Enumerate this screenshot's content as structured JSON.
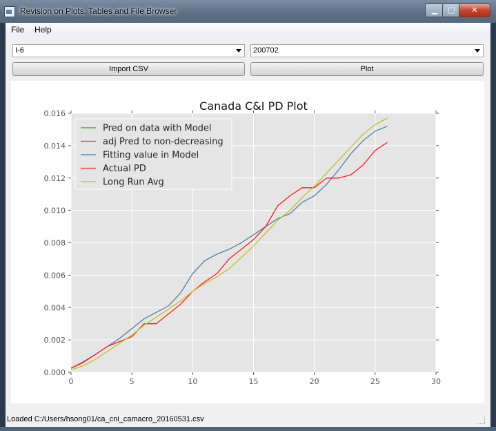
{
  "window": {
    "title": "Revision on Plots, Tables and File Browser",
    "min_glyph": "▁",
    "max_glyph": "□",
    "close_glyph": "✕"
  },
  "menu": [
    "File",
    "Help"
  ],
  "controls": {
    "combo_left": "I-6",
    "combo_right": "200702",
    "import_label": "Import CSV",
    "plot_label": "Plot"
  },
  "status": "Loaded C:/Users/hsong01/ca_cni_camacro_20160531.csv",
  "chart_data": {
    "type": "line",
    "title": "Canada C&I PD Plot",
    "xlim": [
      0,
      30
    ],
    "ylim": [
      0,
      0.016
    ],
    "x_ticks": [
      "0",
      "5",
      "10",
      "15",
      "20",
      "25",
      "30"
    ],
    "y_ticks": [
      "0.000",
      "0.002",
      "0.004",
      "0.006",
      "0.008",
      "0.010",
      "0.012",
      "0.014",
      "0.016"
    ],
    "x_tick_values": [
      0,
      5,
      10,
      15,
      20,
      25,
      30
    ],
    "y_tick_values": [
      0,
      0.002,
      0.004,
      0.006,
      0.008,
      0.01,
      0.012,
      0.014,
      0.016
    ],
    "grid": true,
    "legend_position": "top-left",
    "background": "#e5e5e5",
    "series": [
      {
        "name": "Pred on data with Model",
        "color": "#2ca02c",
        "x": [],
        "y": []
      },
      {
        "name": "adj Pred to non-decreasing",
        "color": "#ff2a2a",
        "x": [],
        "y": []
      },
      {
        "name": "Fitting value in Model",
        "color": "#4a7fa5",
        "x": [
          0,
          1,
          2,
          3,
          4,
          5,
          6,
          7,
          8,
          9,
          10,
          11,
          12,
          13,
          14,
          15,
          16,
          17,
          18,
          19,
          20,
          21,
          22,
          23,
          24,
          25,
          26
        ],
        "y": [
          0.00025,
          0.00065,
          0.0011,
          0.0016,
          0.0021,
          0.0027,
          0.0033,
          0.0037,
          0.0041,
          0.0049,
          0.0061,
          0.0069,
          0.0073,
          0.0076,
          0.008,
          0.0085,
          0.009,
          0.0095,
          0.0098,
          0.0105,
          0.0109,
          0.0116,
          0.0125,
          0.0135,
          0.0143,
          0.0149,
          0.0152
        ]
      },
      {
        "name": "Actual PD",
        "color": "#ff1a1a",
        "x": [
          0,
          1,
          2,
          3,
          4,
          5,
          6,
          7,
          8,
          9,
          10,
          11,
          12,
          13,
          14,
          15,
          16,
          17,
          18,
          19,
          20,
          21,
          22,
          23,
          24,
          25,
          26
        ],
        "y": [
          0.00025,
          0.0006,
          0.0011,
          0.0016,
          0.0019,
          0.0022,
          0.003,
          0.003,
          0.0036,
          0.0042,
          0.005,
          0.0056,
          0.0061,
          0.007,
          0.0076,
          0.0082,
          0.009,
          0.0103,
          0.0109,
          0.0114,
          0.0114,
          0.012,
          0.012,
          0.0122,
          0.0128,
          0.0137,
          0.0142
        ]
      },
      {
        "name": "Long Run Avg",
        "color": "#c2c21a",
        "x": [
          0,
          1,
          2,
          3,
          4,
          5,
          6,
          7,
          8,
          9,
          10,
          11,
          12,
          13,
          14,
          15,
          16,
          17,
          18,
          19,
          20,
          21,
          22,
          23,
          24,
          25,
          26
        ],
        "y": [
          0.00015,
          0.0004,
          0.0008,
          0.0013,
          0.0018,
          0.0023,
          0.0029,
          0.0034,
          0.0039,
          0.0044,
          0.005,
          0.0055,
          0.0059,
          0.0064,
          0.0071,
          0.0078,
          0.0086,
          0.0094,
          0.01,
          0.0108,
          0.0115,
          0.0123,
          0.0131,
          0.0139,
          0.0147,
          0.0153,
          0.0157
        ]
      }
    ]
  }
}
